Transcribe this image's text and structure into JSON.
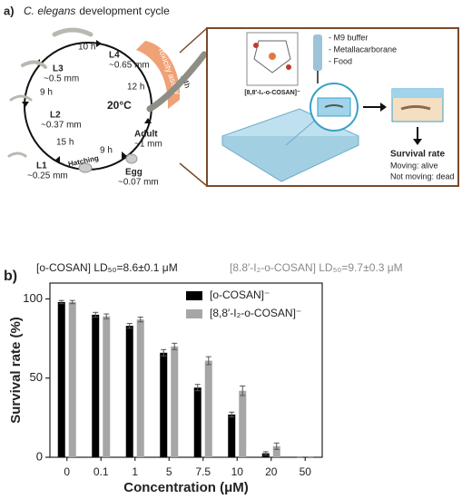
{
  "figure": {
    "panel_a": "a)",
    "panel_b": "b)"
  },
  "diagram": {
    "title_italic": "C. elegans",
    "title_rest": "development cycle",
    "temperature": "20°C",
    "stages": [
      {
        "label": "L4",
        "size": "~0.65 mm"
      },
      {
        "label": "L3",
        "size": "~0.5 mm"
      },
      {
        "label": "L2",
        "size": "~0.37 mm"
      },
      {
        "label": "L1",
        "size": "~0.25 mm"
      },
      {
        "label": "Egg",
        "size": "~0.07 mm"
      },
      {
        "label": "Adult",
        "size": "~1 mm"
      }
    ],
    "times": [
      "10 h",
      "9 h",
      "15 h",
      "9 h",
      "12 h"
    ],
    "hatching": "Hatching",
    "assay": {
      "label": "Toxicity assay",
      "duration": "24h"
    },
    "setup": {
      "items": [
        "- M9 buffer",
        "- Metallacarborane",
        "- Food"
      ],
      "compound": "[8,8′-I₂-o-COSAN]⁻"
    },
    "readout": {
      "title": "Survival rate",
      "lines": [
        "Moving: alive",
        "Not moving: dead"
      ]
    }
  },
  "chart_data": {
    "type": "bar",
    "annotations": [
      "[o-COSAN] LD₅₀=8.6±0.1 μM",
      "[8.8′-I₂-o-COSAN] LD₅₀=9.7±0.3 μM"
    ],
    "x_label": "Concentration (μM)",
    "y_label": "Survival rate (%)",
    "categories": [
      "0",
      "0.1",
      "1",
      "5",
      "7.5",
      "10",
      "20",
      "50"
    ],
    "series": [
      {
        "name": "[o-COSAN]⁻",
        "color": "#000000",
        "values": [
          98,
          90,
          83,
          66,
          44,
          27,
          2.5,
          0
        ],
        "errors": [
          1,
          1.5,
          1.5,
          2,
          2,
          1.5,
          1,
          0
        ]
      },
      {
        "name": "[8,8′-I₂-o-COSAN]⁻",
        "color": "#a6a6a6",
        "values": [
          98,
          89,
          87,
          70,
          61,
          42,
          7,
          0
        ],
        "errors": [
          1,
          1.5,
          1.5,
          2,
          2.5,
          3,
          2,
          0
        ]
      }
    ],
    "ylim": [
      0,
      110
    ],
    "yticks": [
      0,
      50,
      100
    ],
    "legend": "upper right"
  }
}
